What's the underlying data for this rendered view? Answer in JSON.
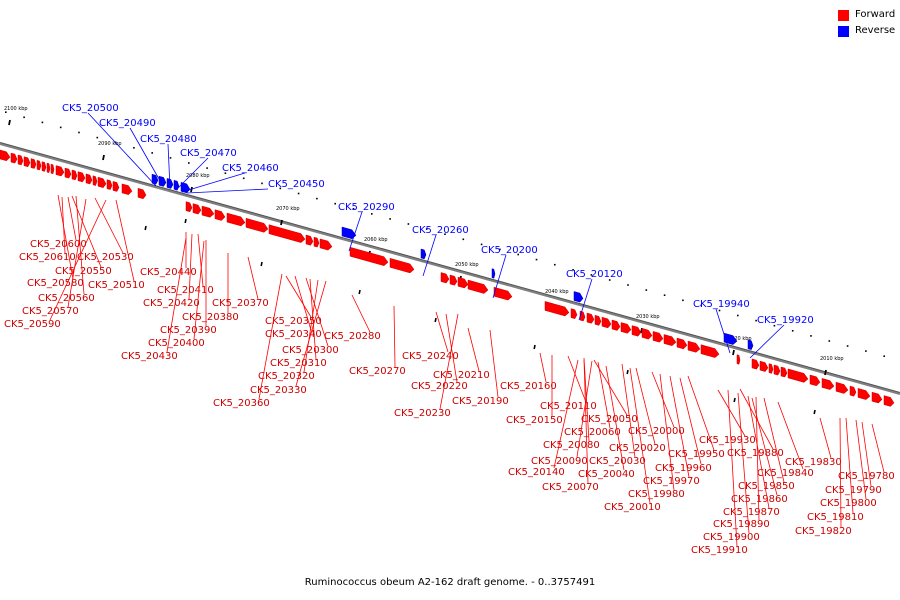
{
  "legend": [
    {
      "label": "Forward",
      "color": "#ff0000"
    },
    {
      "label": "Reverse",
      "color": "#0000ff"
    }
  ],
  "caption": "Ruminococcus obeum A2-162 draft genome. - 0..3757491",
  "scale_labels": [
    "2100 kbp",
    "2090 kbp",
    "2080 kbp",
    "2070 kbp",
    "2060 kbp",
    "2050 kbp",
    "2040 kbp",
    "2030 kbp",
    "2020 kbp",
    "2010 kbp"
  ],
  "colors": {
    "forward": "#ff0000",
    "reverse": "#0000ff",
    "backbone": "#808080",
    "ticks": "#000000"
  },
  "reverse_genes": [
    "CK5_20500",
    "CK5_20490",
    "CK5_20480",
    "CK5_20470",
    "CK5_20460",
    "CK5_20450",
    "CK5_20290",
    "CK5_20260",
    "CK5_20200",
    "CK5_20120",
    "CK5_19940",
    "CK5_19920"
  ],
  "forward_genes": [
    "CK5_20600",
    "CK5_20610",
    "CK5_20530",
    "CK5_20550",
    "CK5_20580",
    "CK5_20510",
    "CK5_20560",
    "CK5_20570",
    "CK5_20590",
    "CK5_20440",
    "CK5_20410",
    "CK5_20420",
    "CK5_20370",
    "CK5_20380",
    "CK5_20390",
    "CK5_20400",
    "CK5_20430",
    "CK5_20350",
    "CK5_20340",
    "CK5_20280",
    "CK5_20300",
    "CK5_20310",
    "CK5_20320",
    "CK5_20330",
    "CK5_20360",
    "CK5_20270",
    "CK5_20240",
    "CK5_20210",
    "CK5_20220",
    "CK5_20190",
    "CK5_20230",
    "CK5_20160",
    "CK5_20110",
    "CK5_20150",
    "CK5_20050",
    "CK5_20060",
    "CK5_20000",
    "CK5_20080",
    "CK5_20020",
    "CK5_20030",
    "CK5_19950",
    "CK5_20090",
    "CK5_19960",
    "CK5_20140",
    "CK5_20040",
    "CK5_19970",
    "CK5_20070",
    "CK5_19980",
    "CK5_20010",
    "CK5_19930",
    "CK5_19880",
    "CK5_19840",
    "CK5_19850",
    "CK5_19860",
    "CK5_19870",
    "CK5_19890",
    "CK5_19900",
    "CK5_19910",
    "CK5_19830",
    "CK5_19780",
    "CK5_19790",
    "CK5_19800",
    "CK5_19810",
    "CK5_19820"
  ]
}
